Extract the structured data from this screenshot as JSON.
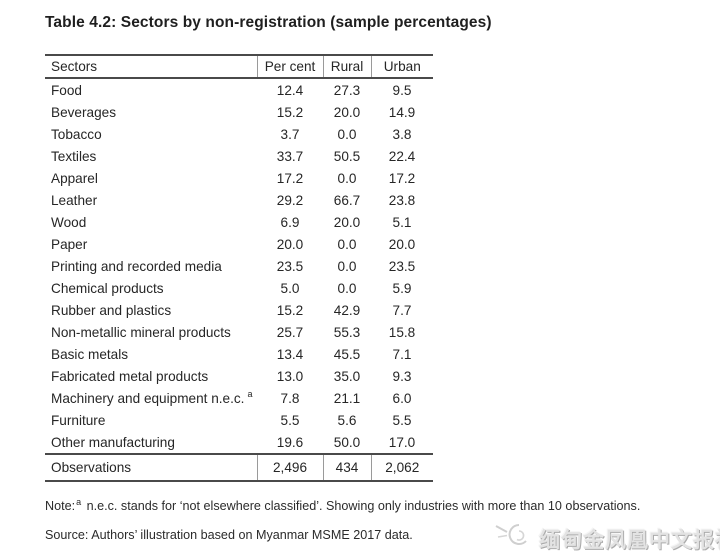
{
  "title": "Table 4.2: Sectors by non-registration (sample percentages)",
  "table": {
    "headers": [
      "Sectors",
      "Per cent",
      "Rural",
      "Urban"
    ],
    "rows": [
      {
        "sector": "Food",
        "per_cent": "12.4",
        "rural": "27.3",
        "urban": "9.5"
      },
      {
        "sector": "Beverages",
        "per_cent": "15.2",
        "rural": "20.0",
        "urban": "14.9"
      },
      {
        "sector": "Tobacco",
        "per_cent": "3.7",
        "rural": "0.0",
        "urban": "3.8"
      },
      {
        "sector": "Textiles",
        "per_cent": "33.7",
        "rural": "50.5",
        "urban": "22.4"
      },
      {
        "sector": "Apparel",
        "per_cent": "17.2",
        "rural": "0.0",
        "urban": "17.2"
      },
      {
        "sector": "Leather",
        "per_cent": "29.2",
        "rural": "66.7",
        "urban": "23.8"
      },
      {
        "sector": "Wood",
        "per_cent": "6.9",
        "rural": "20.0",
        "urban": "5.1"
      },
      {
        "sector": "Paper",
        "per_cent": "20.0",
        "rural": "0.0",
        "urban": "20.0"
      },
      {
        "sector": "Printing and recorded media",
        "per_cent": "23.5",
        "rural": "0.0",
        "urban": "23.5"
      },
      {
        "sector": "Chemical products",
        "per_cent": "5.0",
        "rural": "0.0",
        "urban": "5.9"
      },
      {
        "sector": "Rubber and plastics",
        "per_cent": "15.2",
        "rural": "42.9",
        "urban": "7.7"
      },
      {
        "sector": "Non-metallic mineral products",
        "per_cent": "25.7",
        "rural": "55.3",
        "urban": "15.8"
      },
      {
        "sector": "Basic metals",
        "per_cent": "13.4",
        "rural": "45.5",
        "urban": "7.1"
      },
      {
        "sector": "Fabricated metal products",
        "per_cent": "13.0",
        "rural": "35.0",
        "urban": "9.3"
      },
      {
        "sector": "Machinery and equipment n.e.c.",
        "marker": "a",
        "per_cent": "7.8",
        "rural": "21.1",
        "urban": "6.0"
      },
      {
        "sector": "Furniture",
        "per_cent": "5.5",
        "rural": "5.6",
        "urban": "5.5"
      },
      {
        "sector": "Other manufacturing",
        "per_cent": "19.6",
        "rural": "50.0",
        "urban": "17.0"
      }
    ],
    "footer": {
      "label": "Observations",
      "per_cent": "2,496",
      "rural": "434",
      "urban": "2,062"
    }
  },
  "note": {
    "prefix": "Note:",
    "marker": "a",
    "text": "n.e.c. stands for ‘not elsewhere classified’. Showing only industries with more than 10 observations."
  },
  "source": "Source: Authors’ illustration based on Myanmar MSME 2017 data.",
  "watermark": {
    "icon": "phoenix-logo",
    "text": "缅甸金凤凰中文报社"
  },
  "colors": {
    "text": "#262626",
    "rule": "#4a4a4a",
    "watermark": "#e3e3e3"
  }
}
